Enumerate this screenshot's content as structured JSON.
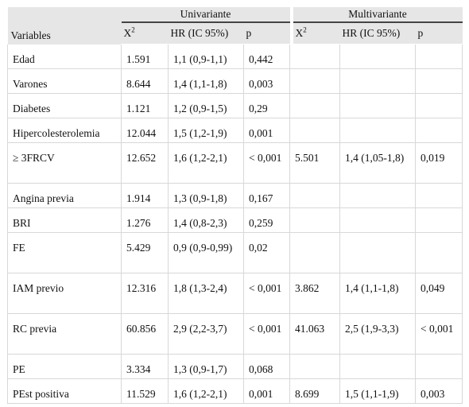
{
  "header": {
    "group_uni": "Univariante",
    "group_multi": "Multivariante",
    "variables": "Variables",
    "x2": "X",
    "x2_sup": "2",
    "hr": "HR (IC 95%)",
    "p": "p"
  },
  "rows": [
    {
      "variable": "Edad",
      "u_x2": "1.591",
      "u_hr": "1,1 (0,9-1,1)",
      "u_p": "0,442",
      "m_x2": "",
      "m_hr": "",
      "m_p": ""
    },
    {
      "variable": "Varones",
      "u_x2": "8.644",
      "u_hr": "1,4 (1,1-1,8)",
      "u_p": "0,003",
      "m_x2": "",
      "m_hr": "",
      "m_p": ""
    },
    {
      "variable": "Diabetes",
      "u_x2": "1.121",
      "u_hr": "1,2 (0,9-1,5)",
      "u_p": "0,29",
      "m_x2": "",
      "m_hr": "",
      "m_p": ""
    },
    {
      "variable": "Hipercolesterolemia",
      "u_x2": "12.044",
      "u_hr": "1,5 (1,2-1,9)",
      "u_p": "0,001",
      "m_x2": "",
      "m_hr": "",
      "m_p": ""
    },
    {
      "variable": "≥ 3FRCV",
      "u_x2": "12.652",
      "u_hr": "1,6 (1,2-2,1)",
      "u_p": "< 0,001",
      "m_x2": "5.501",
      "m_hr": "1,4 (1,05-1,8)",
      "m_p": "0,019"
    },
    {
      "variable": "Angina previa",
      "u_x2": "1.914",
      "u_hr": "1,3 (0,9-1,8)",
      "u_p": "0,167",
      "m_x2": "",
      "m_hr": "",
      "m_p": ""
    },
    {
      "variable": "BRI",
      "u_x2": "1.276",
      "u_hr": "1,4 (0,8-2,3)",
      "u_p": "0,259",
      "m_x2": "",
      "m_hr": "",
      "m_p": ""
    },
    {
      "variable": "FE",
      "u_x2": "5.429",
      "u_hr": "0,9 (0,9-0,99)",
      "u_p": "0,02",
      "m_x2": "",
      "m_hr": "",
      "m_p": ""
    },
    {
      "variable": "IAM previo",
      "u_x2": "12.316",
      "u_hr": "1,8 (1,3-2,4)",
      "u_p": "< 0,001",
      "m_x2": "3.862",
      "m_hr": "1,4 (1,1-1,8)",
      "m_p": "0,049"
    },
    {
      "variable": "RC previa",
      "u_x2": "60.856",
      "u_hr": "2,9 (2,2-3,7)",
      "u_p": "< 0,001",
      "m_x2": "41.063",
      "m_hr": "2,5 (1,9-3,3)",
      "m_p": "< 0,001"
    },
    {
      "variable": "PE",
      "u_x2": "3.334",
      "u_hr": "1,3 (0,9-1,7)",
      "u_p": "0,068",
      "m_x2": "",
      "m_hr": "",
      "m_p": ""
    },
    {
      "variable": "PEst positiva",
      "u_x2": "11.529",
      "u_hr": "1,6 (1,2-2,1)",
      "u_p": "0,001",
      "m_x2": "8.699",
      "m_hr": "1,5 (1,1-1,9)",
      "m_p": "0,003"
    }
  ]
}
